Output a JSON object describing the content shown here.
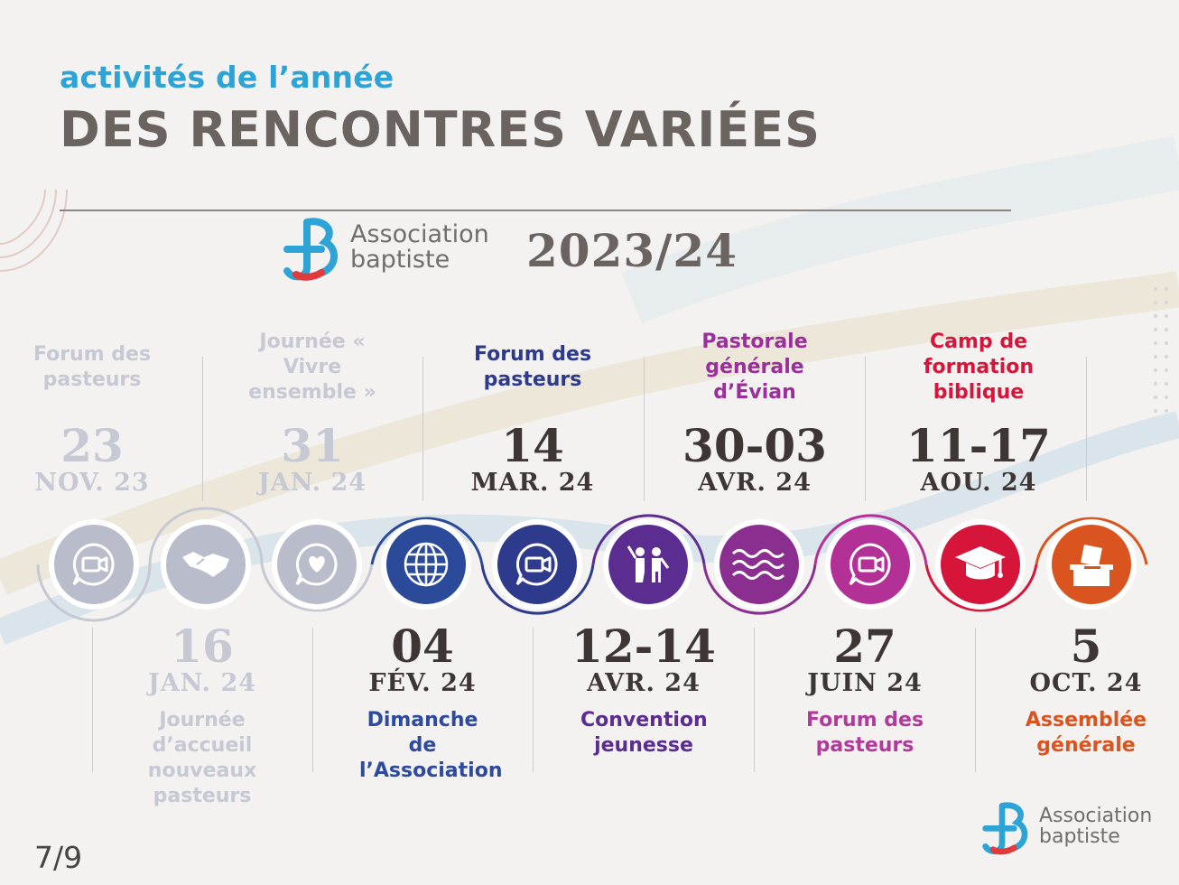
{
  "header": {
    "subtitle": "activités de l’année",
    "title": "DES RENCONTRES VARIÉES"
  },
  "logo": {
    "line1": "Association",
    "line2": "baptiste"
  },
  "year": "2023/24",
  "page_number": "7/9",
  "top_events": [
    {
      "label": "Forum des pasteurs",
      "day": "23",
      "month": "NOV. 23",
      "color": "#c6c8d3",
      "date_color": "#c6c8d3"
    },
    {
      "label": "Journée « Vivre ensemble »",
      "day": "31",
      "month": "JAN. 24",
      "color": "#c6c8d3",
      "date_color": "#c6c8d3"
    },
    {
      "label": "Forum des pasteurs",
      "day": "14",
      "month": "MAR. 24",
      "color": "#2e3a8c",
      "date_color": "#3e3634"
    },
    {
      "label": "Pastorale générale d’Évian",
      "day": "30-03",
      "month": "AVR. 24",
      "color": "#9a2f9c",
      "date_color": "#3e3634"
    },
    {
      "label": "Camp de formation biblique",
      "day": "11-17",
      "month": "AOU. 24",
      "color": "#d8143a",
      "date_color": "#3e3634"
    }
  ],
  "bottom_events": [
    {
      "label": "Journée d’accueil nouveaux pasteurs",
      "day": "16",
      "month": "JAN. 24",
      "color": "#c6c8d3",
      "date_color": "#c6c8d3"
    },
    {
      "label": "Dimanche de l’Association",
      "day": "04",
      "month": "FÉV. 24",
      "color": "#2e4a9c",
      "date_color": "#3e3634"
    },
    {
      "label": "Convention jeunesse",
      "day": "12-14",
      "month": "AVR. 24",
      "color": "#5b2d91",
      "date_color": "#3e3634"
    },
    {
      "label": "Forum des pasteurs",
      "day": "27",
      "month": "JUIN 24",
      "color": "#b23a9a",
      "date_color": "#3e3634"
    },
    {
      "label": "Assemblée générale",
      "day": "5",
      "month": "OCT. 24",
      "color": "#d9541e",
      "date_color": "#3e3634"
    }
  ],
  "icons": [
    {
      "name": "video-chat-icon",
      "color": "#b9bccb"
    },
    {
      "name": "handshake-icon",
      "color": "#b9bccb"
    },
    {
      "name": "heart-bubble-icon",
      "color": "#b9bccb"
    },
    {
      "name": "globe-icon",
      "color": "#2b4a9a"
    },
    {
      "name": "video-chat-icon",
      "color": "#2e3a8c"
    },
    {
      "name": "children-icon",
      "color": "#5b2d91"
    },
    {
      "name": "waves-icon",
      "color": "#8a2f8f"
    },
    {
      "name": "video-chat-icon",
      "color": "#b33097"
    },
    {
      "name": "graduation-cap-icon",
      "color": "#d6153a"
    },
    {
      "name": "ballot-box-icon",
      "color": "#d9541e"
    }
  ]
}
